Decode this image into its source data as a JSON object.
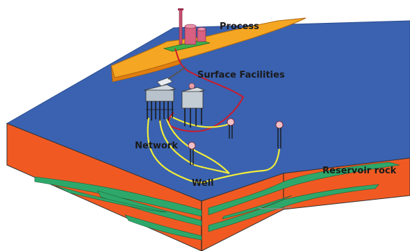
{
  "labels": {
    "process": "Process",
    "surface_facilities": "Surface Facilities",
    "network": "Network",
    "well": "Well",
    "reservoir_rock": "Reservoir rock"
  },
  "colors": {
    "sea": "#3a62b0",
    "rock": "#f05a22",
    "reservoir": "#2ea86a",
    "land": "#f5a623",
    "pipeline_yellow": "#f2ec3a",
    "pipeline_red": "#cc1a2a",
    "outline": "#222222"
  },
  "icons": {
    "platform": "offshore-platform-icon",
    "wellhead": "wellhead-icon",
    "plant": "process-plant-icon"
  }
}
